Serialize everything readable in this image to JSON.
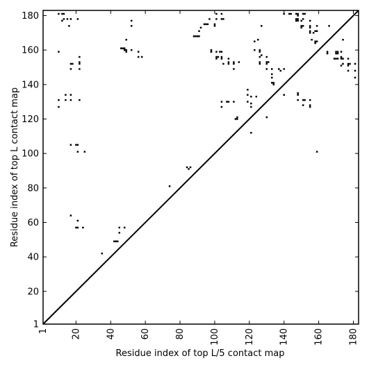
{
  "chart_data": {
    "type": "scatter",
    "title": "",
    "xlabel": "Residue index of top L/5 contact map",
    "ylabel": "Residue index of top L contact map",
    "xlim": [
      1,
      183
    ],
    "ylim": [
      1,
      183
    ],
    "xticks": [
      1,
      20,
      40,
      60,
      80,
      100,
      120,
      140,
      160,
      180
    ],
    "yticks": [
      1,
      20,
      40,
      60,
      80,
      100,
      120,
      140,
      160,
      180
    ],
    "xtick_labels": [
      "1",
      "20",
      "40",
      "60",
      "80",
      "100",
      "120",
      "140",
      "160",
      "180"
    ],
    "ytick_labels": [
      "1",
      "20",
      "40",
      "60",
      "80",
      "100",
      "120",
      "140",
      "160",
      "180"
    ],
    "grid": false,
    "diagonal_line": true,
    "marker_color": "#000000",
    "lower_triangle_points": [
      [
        74,
        81
      ],
      [
        84,
        92
      ],
      [
        85,
        91
      ],
      [
        86,
        92
      ],
      [
        42,
        49
      ],
      [
        43,
        49
      ],
      [
        44,
        49
      ],
      [
        35,
        42
      ],
      [
        17,
        64
      ],
      [
        20,
        57
      ],
      [
        21,
        57
      ],
      [
        21,
        61
      ],
      [
        24,
        57
      ],
      [
        45,
        54
      ],
      [
        45,
        57
      ],
      [
        48,
        57
      ],
      [
        112,
        120
      ],
      [
        113,
        120
      ],
      [
        113,
        121
      ],
      [
        121,
        112
      ],
      [
        130,
        121
      ],
      [
        17,
        105
      ],
      [
        20,
        105
      ],
      [
        21,
        105
      ],
      [
        21,
        101
      ],
      [
        25,
        101
      ],
      [
        10,
        127
      ],
      [
        10,
        131
      ],
      [
        14,
        131
      ],
      [
        14,
        134
      ],
      [
        17,
        131
      ],
      [
        17,
        134
      ],
      [
        22,
        131
      ],
      [
        104,
        127
      ],
      [
        104,
        130
      ],
      [
        107,
        130
      ],
      [
        108,
        130
      ],
      [
        111,
        130
      ],
      [
        119,
        130
      ],
      [
        119,
        134
      ],
      [
        119,
        137
      ],
      [
        121,
        127
      ],
      [
        121,
        129
      ],
      [
        121,
        133
      ],
      [
        124,
        133
      ],
      [
        140,
        134
      ],
      [
        148,
        131
      ],
      [
        148,
        134
      ],
      [
        148,
        135
      ],
      [
        151,
        128
      ],
      [
        151,
        131
      ],
      [
        152,
        131
      ],
      [
        155,
        127
      ],
      [
        155,
        128
      ],
      [
        155,
        131
      ],
      [
        159,
        101
      ],
      [
        17,
        149
      ],
      [
        17,
        152
      ],
      [
        18,
        152
      ],
      [
        22,
        149
      ],
      [
        22,
        152
      ],
      [
        22,
        153
      ],
      [
        22,
        156
      ],
      [
        10,
        159
      ],
      [
        46,
        161
      ],
      [
        47,
        161
      ],
      [
        48,
        160
      ],
      [
        48,
        161
      ],
      [
        49,
        160
      ],
      [
        49,
        159
      ],
      [
        49,
        166
      ],
      [
        52,
        160
      ],
      [
        56,
        156
      ],
      [
        56,
        159
      ],
      [
        88,
        168
      ],
      [
        89,
        168
      ],
      [
        90,
        168
      ],
      [
        91,
        168
      ],
      [
        91,
        171
      ],
      [
        92,
        173
      ],
      [
        94,
        175
      ],
      [
        95,
        175
      ],
      [
        96,
        175
      ],
      [
        97,
        178
      ],
      [
        98,
        159
      ],
      [
        98,
        160
      ],
      [
        100,
        174
      ],
      [
        100,
        175
      ],
      [
        101,
        155
      ],
      [
        101,
        156
      ],
      [
        101,
        159
      ],
      [
        102,
        156
      ],
      [
        103,
        159
      ],
      [
        104,
        155
      ],
      [
        104,
        156
      ],
      [
        104,
        159
      ],
      [
        104,
        178
      ],
      [
        105,
        178
      ],
      [
        104,
        181
      ],
      [
        101,
        178
      ],
      [
        101,
        181
      ],
      [
        105,
        152
      ],
      [
        108,
        152
      ],
      [
        108,
        153
      ],
      [
        108,
        155
      ],
      [
        111,
        149
      ],
      [
        111,
        152
      ],
      [
        111,
        153
      ],
      [
        123,
        160
      ],
      [
        123,
        165
      ],
      [
        125,
        166
      ],
      [
        126,
        159
      ],
      [
        126,
        160
      ],
      [
        126,
        153
      ],
      [
        126,
        152
      ],
      [
        126,
        156
      ],
      [
        127,
        157
      ],
      [
        127,
        174
      ],
      [
        130,
        149
      ],
      [
        130,
        152
      ],
      [
        130,
        153
      ],
      [
        130,
        156
      ],
      [
        131,
        153
      ],
      [
        133,
        141
      ],
      [
        133,
        144
      ],
      [
        133,
        146
      ],
      [
        133,
        149
      ],
      [
        134,
        140
      ],
      [
        134,
        141
      ],
      [
        137,
        149
      ],
      [
        138,
        148
      ],
      [
        140,
        149
      ],
      [
        140,
        181
      ],
      [
        143,
        181
      ],
      [
        144,
        181
      ],
      [
        147,
        177
      ],
      [
        147,
        178
      ],
      [
        147,
        181
      ],
      [
        148,
        177
      ],
      [
        148,
        178
      ],
      [
        148,
        180
      ],
      [
        148,
        181
      ],
      [
        150,
        173
      ],
      [
        150,
        174
      ],
      [
        150,
        177
      ],
      [
        151,
        174
      ],
      [
        151,
        178
      ],
      [
        151,
        181
      ],
      [
        152,
        181
      ],
      [
        155,
        170
      ],
      [
        155,
        171
      ],
      [
        155,
        173
      ],
      [
        155,
        174
      ],
      [
        155,
        177
      ],
      [
        156,
        166
      ],
      [
        157,
        170
      ],
      [
        158,
        164
      ],
      [
        158,
        165
      ],
      [
        159,
        165
      ],
      [
        158,
        171
      ],
      [
        159,
        171
      ],
      [
        159,
        174
      ],
      [
        165,
        158
      ],
      [
        165,
        159
      ],
      [
        166,
        174
      ],
      [
        169,
        155
      ],
      [
        170,
        155
      ],
      [
        170,
        158
      ],
      [
        170,
        159
      ],
      [
        171,
        155
      ],
      [
        171,
        158
      ],
      [
        171,
        159
      ],
      [
        173,
        155
      ],
      [
        173,
        156
      ],
      [
        173,
        159
      ],
      [
        173,
        151
      ],
      [
        174,
        152
      ],
      [
        174,
        166
      ],
      [
        174,
        155
      ],
      [
        177,
        148
      ],
      [
        177,
        151
      ],
      [
        177,
        152
      ],
      [
        177,
        155
      ],
      [
        178,
        152
      ],
      [
        181,
        144
      ],
      [
        181,
        148
      ],
      [
        181,
        152
      ],
      [
        10,
        181
      ],
      [
        12,
        177
      ],
      [
        12,
        181
      ],
      [
        13,
        178
      ],
      [
        13,
        181
      ],
      [
        15,
        178
      ],
      [
        16,
        174
      ],
      [
        17,
        178
      ],
      [
        21,
        178
      ],
      [
        52,
        174
      ],
      [
        52,
        177
      ],
      [
        58,
        156
      ],
      [
        98,
        159
      ],
      [
        114,
        153
      ]
    ]
  }
}
